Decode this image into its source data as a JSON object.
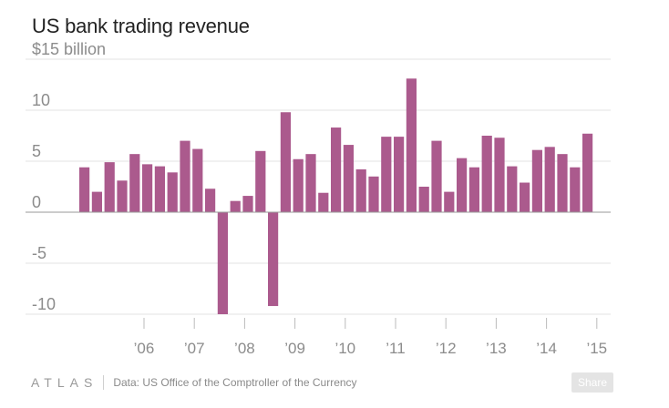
{
  "header": {
    "title": "US bank trading revenue"
  },
  "footer": {
    "brand": "ATLAS",
    "source": "Data: US Office of the Comptroller of the Currency",
    "share_label": "Share"
  },
  "colors": {
    "bar": "#ab5a8d",
    "grid": "#e3e3e3",
    "axis_text": "#8c8c8c",
    "zero_line": "#999999"
  },
  "chart_data": {
    "type": "bar",
    "title": "US bank trading revenue",
    "ylabel": "$ billion",
    "ylim": [
      -10,
      15
    ],
    "y_ticks": [
      {
        "value": 15,
        "label": "$15 billion"
      },
      {
        "value": 10,
        "label": "10"
      },
      {
        "value": 5,
        "label": "5"
      },
      {
        "value": 0,
        "label": "0"
      },
      {
        "value": -5,
        "label": "-5"
      },
      {
        "value": -10,
        "label": "-10"
      }
    ],
    "x_ticks": [
      {
        "index": 5,
        "label": "’06"
      },
      {
        "index": 9,
        "label": "’07"
      },
      {
        "index": 13,
        "label": "’08"
      },
      {
        "index": 17,
        "label": "’09"
      },
      {
        "index": 21,
        "label": "’10"
      },
      {
        "index": 25,
        "label": "’11"
      },
      {
        "index": 29,
        "label": "’12"
      },
      {
        "index": 33,
        "label": "’13"
      },
      {
        "index": 37,
        "label": "’14"
      },
      {
        "index": 41,
        "label": "’15"
      }
    ],
    "values": [
      4.4,
      2.0,
      4.9,
      3.1,
      5.7,
      4.7,
      4.5,
      3.9,
      7.0,
      6.2,
      2.3,
      -10.0,
      1.1,
      1.6,
      6.0,
      -9.2,
      9.8,
      5.2,
      5.7,
      1.9,
      8.3,
      6.6,
      4.2,
      3.5,
      7.4,
      7.4,
      13.1,
      2.5,
      7.0,
      2.0,
      5.3,
      4.4,
      7.5,
      7.3,
      4.5,
      2.9,
      6.1,
      6.4,
      5.7,
      4.4,
      7.7
    ]
  }
}
